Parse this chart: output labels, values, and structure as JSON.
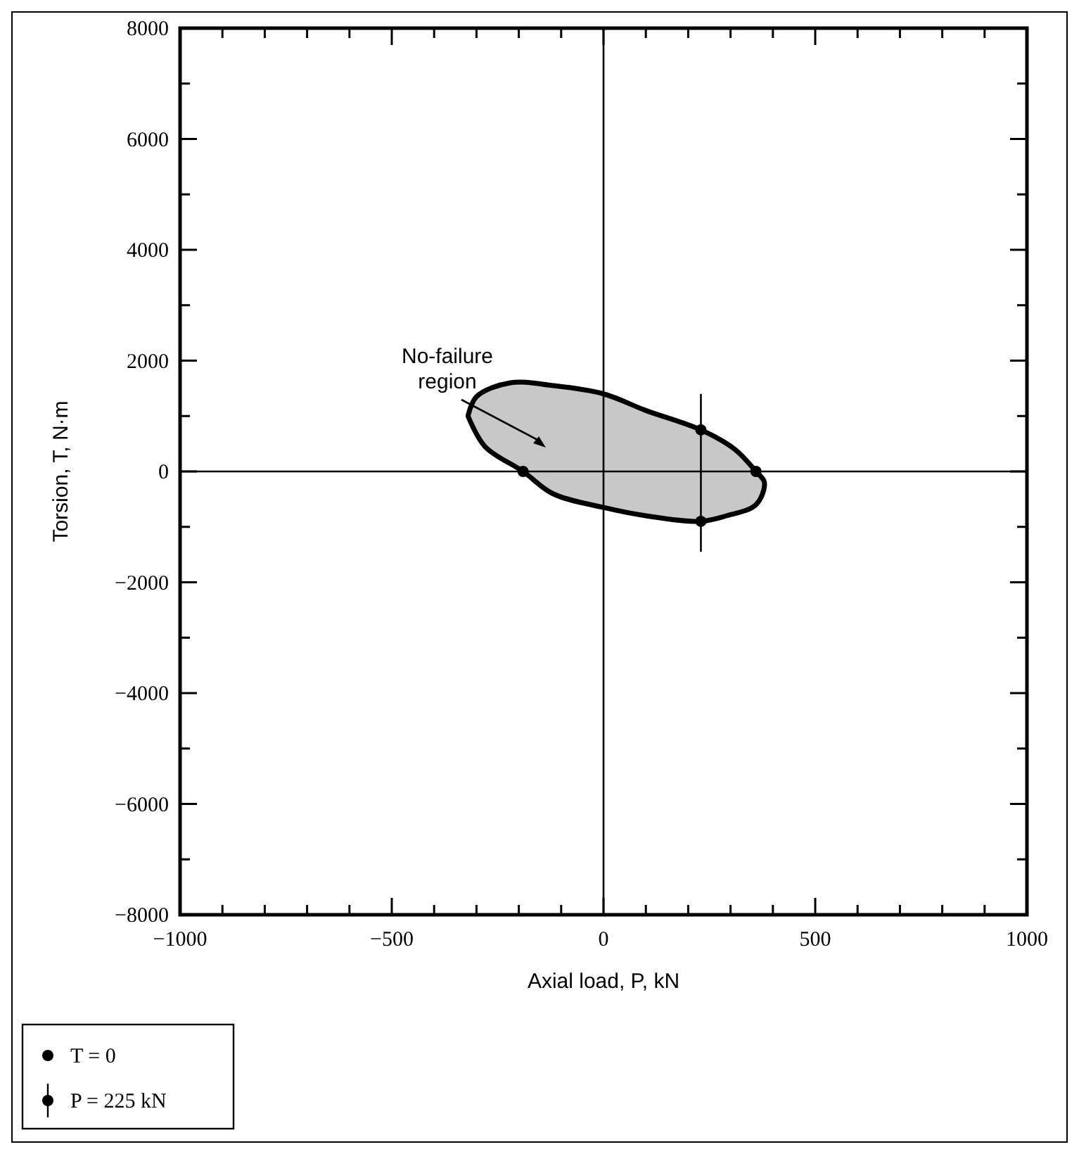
{
  "chart_data": {
    "type": "scatter",
    "xlabel": "Axial load, P, kN",
    "ylabel": "Torsion, T, N·m",
    "xlim": [
      -1000,
      1000
    ],
    "ylim": [
      -8000,
      8000
    ],
    "xticks": [
      -1000,
      {
        "value": -900,
        "label": null
      },
      {
        "value": -800,
        "label": null
      },
      {
        "value": -700,
        "label": null
      },
      {
        "value": -600,
        "label": null
      },
      -500,
      {
        "value": -400,
        "label": null
      },
      {
        "value": -300,
        "label": null
      },
      {
        "value": -200,
        "label": null
      },
      {
        "value": -100,
        "label": null
      },
      0,
      {
        "value": 100,
        "label": null
      },
      {
        "value": 200,
        "label": null
      },
      {
        "value": 300,
        "label": null
      },
      {
        "value": 400,
        "label": null
      },
      500,
      {
        "value": 600,
        "label": null
      },
      {
        "value": 700,
        "label": null
      },
      {
        "value": 800,
        "label": null
      },
      {
        "value": 900,
        "label": null
      },
      1000
    ],
    "yticks": [
      -8000,
      {
        "value": -7000,
        "label": null
      },
      -6000,
      {
        "value": -5000,
        "label": null
      },
      -4000,
      {
        "value": -3000,
        "label": null
      },
      -2000,
      {
        "value": -1000,
        "label": null
      },
      0,
      {
        "value": 1000,
        "label": null
      },
      2000,
      {
        "value": 3000,
        "label": null
      },
      4000,
      {
        "value": 5000,
        "label": null
      },
      6000,
      {
        "value": 7000,
        "label": null
      },
      8000
    ],
    "grid": false,
    "legend": "bottom left",
    "annotations": [
      "No-failure region"
    ],
    "series": [
      {
        "type": "area",
        "color": "#c8c8c8",
        "x": [
          -320,
          -300,
          -220,
          -120,
          0,
          100,
          230,
          310,
          360,
          380,
          360,
          290,
          230,
          100,
          0,
          -120,
          -190,
          -280,
          -320
        ],
        "values": [
          1000,
          1350,
          1600,
          1550,
          1400,
          1100,
          750,
          400,
          0,
          -200,
          -600,
          -800,
          -900,
          -800,
          -650,
          -400,
          0,
          450,
          1000
        ]
      },
      {
        "type": "line",
        "color": "#000000",
        "x": [
          -1000,
          1000
        ],
        "values": [
          0,
          0
        ]
      },
      {
        "type": "line",
        "color": "#000000",
        "x": [
          0,
          0
        ],
        "values": [
          -8000,
          8000
        ]
      },
      {
        "type": "line",
        "color": "#000000",
        "x": [
          230,
          230
        ],
        "values": [
          -1450,
          1400
        ]
      },
      {
        "name": "T = 0",
        "marker": "circle",
        "color": "#000000",
        "x": [
          -190,
          360
        ],
        "values": [
          0,
          0
        ]
      },
      {
        "name": "P = 225 kN",
        "marker": "circle",
        "color": "#000000",
        "x": [
          230,
          230
        ],
        "values": [
          750,
          -900
        ]
      }
    ]
  }
}
